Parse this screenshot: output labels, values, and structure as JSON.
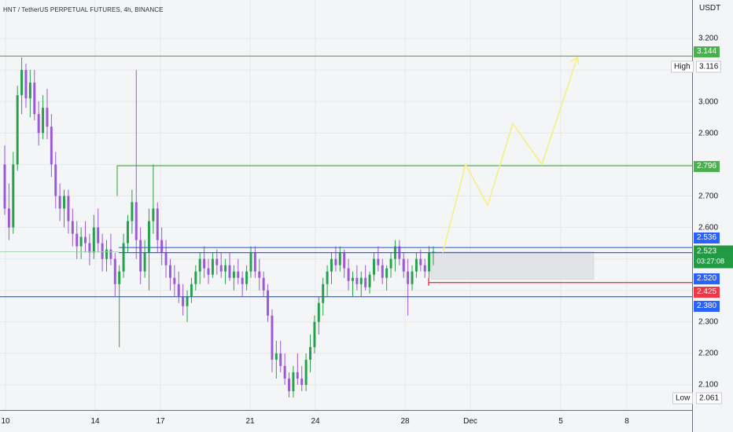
{
  "header": {
    "symbol_title": "HNT / TetherUS PERPETUAL FUTURES, 4h, BINANCE"
  },
  "price_axis": {
    "unit": "USDT",
    "ticks": [
      "3.200",
      "3.000",
      "2.900",
      "2.700",
      "2.600",
      "2.300",
      "2.200",
      "2.100"
    ],
    "partial_ticks": [
      "3.116",
      "2.380"
    ]
  },
  "price_tags": {
    "level_top": "3.144",
    "level_mid": "2.796",
    "resistance": "2.536",
    "current_price": "2.523",
    "countdown": "03:27:08",
    "support_upper": "2.520",
    "stop": "2.425",
    "support_lower": "2.380"
  },
  "high_low": {
    "high_label": "High",
    "high_value": "3.116",
    "low_label": "Low",
    "low_value": "2.061"
  },
  "time_axis": {
    "labels": [
      "10",
      "14",
      "17",
      "21",
      "24",
      "28",
      "Dec",
      "5",
      "8"
    ]
  },
  "colors": {
    "background": "#f4f5f6",
    "up_candle": "#26a14b",
    "down_candle": "#9b59d6",
    "green_level": "#4caf50",
    "blue_level": "#2962ff",
    "red_level": "#f23645",
    "projection": "#f5ef83",
    "current_tag": "#229a44"
  },
  "chart_data": {
    "type": "candlestick",
    "title": "HNT / TetherUS PERPETUAL FUTURES, 4h, BINANCE",
    "ylim": [
      2.04,
      3.26
    ],
    "y_unit": "USDT",
    "x_ticks": [
      "10",
      "14",
      "17",
      "21",
      "24",
      "28",
      "Dec",
      "5",
      "8"
    ],
    "horizontal_levels": [
      {
        "value": 3.144,
        "color": "green"
      },
      {
        "value": 2.796,
        "color": "green"
      },
      {
        "value": 2.536,
        "color": "blue"
      },
      {
        "value": 2.52,
        "color": "blue"
      },
      {
        "value": 2.425,
        "color": "red"
      },
      {
        "value": 2.38,
        "color": "blue"
      }
    ],
    "projection_path": [
      2.52,
      2.8,
      2.67,
      2.93,
      2.8,
      3.14
    ],
    "candles": [
      [
        2.8,
        2.86,
        2.64,
        2.66
      ],
      [
        2.66,
        2.74,
        2.56,
        2.6
      ],
      [
        2.6,
        2.84,
        2.58,
        2.8
      ],
      [
        2.8,
        3.05,
        2.78,
        3.02
      ],
      [
        3.02,
        3.14,
        2.96,
        3.1
      ],
      [
        3.1,
        3.12,
        2.98,
        3.01
      ],
      [
        3.01,
        3.1,
        2.95,
        3.06
      ],
      [
        3.06,
        3.1,
        2.94,
        2.96
      ],
      [
        2.96,
        3.0,
        2.86,
        2.9
      ],
      [
        2.9,
        3.02,
        2.88,
        2.98
      ],
      [
        2.98,
        3.04,
        2.88,
        2.92
      ],
      [
        2.92,
        2.96,
        2.76,
        2.8
      ],
      [
        2.8,
        2.84,
        2.66,
        2.7
      ],
      [
        2.7,
        2.74,
        2.62,
        2.66
      ],
      [
        2.66,
        2.72,
        2.6,
        2.7
      ],
      [
        2.7,
        2.72,
        2.58,
        2.62
      ],
      [
        2.62,
        2.66,
        2.54,
        2.58
      ],
      [
        2.58,
        2.62,
        2.5,
        2.54
      ],
      [
        2.54,
        2.6,
        2.5,
        2.57
      ],
      [
        2.57,
        2.62,
        2.52,
        2.55
      ],
      [
        2.55,
        2.58,
        2.48,
        2.52
      ],
      [
        2.52,
        2.64,
        2.5,
        2.6
      ],
      [
        2.6,
        2.66,
        2.52,
        2.55
      ],
      [
        2.55,
        2.58,
        2.46,
        2.5
      ],
      [
        2.5,
        2.56,
        2.46,
        2.53
      ],
      [
        2.53,
        2.58,
        2.48,
        2.5
      ],
      [
        2.5,
        2.52,
        2.38,
        2.42
      ],
      [
        2.42,
        2.48,
        2.22,
        2.46
      ],
      [
        2.46,
        2.58,
        2.44,
        2.55
      ],
      [
        2.55,
        2.64,
        2.52,
        2.62
      ],
      [
        2.62,
        2.72,
        2.58,
        2.68
      ],
      [
        2.68,
        3.1,
        2.5,
        2.56
      ],
      [
        2.56,
        2.6,
        2.42,
        2.46
      ],
      [
        2.46,
        2.56,
        2.44,
        2.52
      ],
      [
        2.52,
        2.66,
        2.4,
        2.62
      ],
      [
        2.62,
        2.8,
        2.58,
        2.66
      ],
      [
        2.66,
        2.68,
        2.52,
        2.56
      ],
      [
        2.56,
        2.6,
        2.48,
        2.52
      ],
      [
        2.52,
        2.56,
        2.44,
        2.48
      ],
      [
        2.48,
        2.5,
        2.4,
        2.44
      ],
      [
        2.44,
        2.48,
        2.38,
        2.42
      ],
      [
        2.42,
        2.46,
        2.36,
        2.38
      ],
      [
        2.38,
        2.42,
        2.32,
        2.35
      ],
      [
        2.35,
        2.4,
        2.3,
        2.38
      ],
      [
        2.38,
        2.44,
        2.36,
        2.42
      ],
      [
        2.42,
        2.48,
        2.4,
        2.46
      ],
      [
        2.46,
        2.52,
        2.42,
        2.5
      ],
      [
        2.5,
        2.54,
        2.44,
        2.47
      ],
      [
        2.47,
        2.5,
        2.42,
        2.45
      ],
      [
        2.45,
        2.52,
        2.44,
        2.5
      ],
      [
        2.5,
        2.53,
        2.45,
        2.48
      ],
      [
        2.48,
        2.52,
        2.44,
        2.46
      ],
      [
        2.46,
        2.5,
        2.42,
        2.48
      ],
      [
        2.48,
        2.52,
        2.43,
        2.44
      ],
      [
        2.44,
        2.48,
        2.4,
        2.46
      ],
      [
        2.46,
        2.5,
        2.42,
        2.44
      ],
      [
        2.44,
        2.46,
        2.38,
        2.42
      ],
      [
        2.42,
        2.48,
        2.4,
        2.46
      ],
      [
        2.46,
        2.54,
        2.44,
        2.52
      ],
      [
        2.52,
        2.54,
        2.44,
        2.46
      ],
      [
        2.46,
        2.5,
        2.4,
        2.44
      ],
      [
        2.44,
        2.46,
        2.38,
        2.4
      ],
      [
        2.4,
        2.42,
        2.3,
        2.32
      ],
      [
        2.32,
        2.34,
        2.14,
        2.18
      ],
      [
        2.18,
        2.24,
        2.12,
        2.2
      ],
      [
        2.2,
        2.24,
        2.14,
        2.16
      ],
      [
        2.16,
        2.2,
        2.1,
        2.12
      ],
      [
        2.12,
        2.14,
        2.06,
        2.08
      ],
      [
        2.08,
        2.16,
        2.06,
        2.14
      ],
      [
        2.14,
        2.2,
        2.1,
        2.12
      ],
      [
        2.12,
        2.16,
        2.08,
        2.1
      ],
      [
        2.1,
        2.2,
        2.08,
        2.18
      ],
      [
        2.18,
        2.26,
        2.14,
        2.22
      ],
      [
        2.22,
        2.32,
        2.2,
        2.3
      ],
      [
        2.3,
        2.38,
        2.26,
        2.36
      ],
      [
        2.36,
        2.44,
        2.32,
        2.42
      ],
      [
        2.42,
        2.48,
        2.38,
        2.46
      ],
      [
        2.46,
        2.52,
        2.42,
        2.5
      ],
      [
        2.5,
        2.54,
        2.46,
        2.48
      ],
      [
        2.48,
        2.54,
        2.46,
        2.52
      ],
      [
        2.52,
        2.53,
        2.44,
        2.47
      ],
      [
        2.47,
        2.5,
        2.4,
        2.43
      ],
      [
        2.43,
        2.46,
        2.38,
        2.44
      ],
      [
        2.44,
        2.48,
        2.4,
        2.42
      ],
      [
        2.42,
        2.46,
        2.38,
        2.44
      ],
      [
        2.44,
        2.48,
        2.4,
        2.41
      ],
      [
        2.41,
        2.46,
        2.39,
        2.45
      ],
      [
        2.45,
        2.52,
        2.43,
        2.5
      ],
      [
        2.5,
        2.54,
        2.46,
        2.48
      ],
      [
        2.48,
        2.5,
        2.42,
        2.44
      ],
      [
        2.44,
        2.48,
        2.4,
        2.47
      ],
      [
        2.47,
        2.52,
        2.44,
        2.5
      ],
      [
        2.5,
        2.56,
        2.46,
        2.54
      ],
      [
        2.54,
        2.56,
        2.48,
        2.5
      ],
      [
        2.5,
        2.52,
        2.44,
        2.46
      ],
      [
        2.46,
        2.5,
        2.32,
        2.42
      ],
      [
        2.42,
        2.48,
        2.4,
        2.46
      ],
      [
        2.46,
        2.52,
        2.44,
        2.5
      ],
      [
        2.5,
        2.53,
        2.46,
        2.48
      ],
      [
        2.48,
        2.5,
        2.44,
        2.46
      ],
      [
        2.46,
        2.54,
        2.44,
        2.52
      ],
      [
        2.52,
        2.54,
        2.48,
        2.523
      ]
    ]
  }
}
